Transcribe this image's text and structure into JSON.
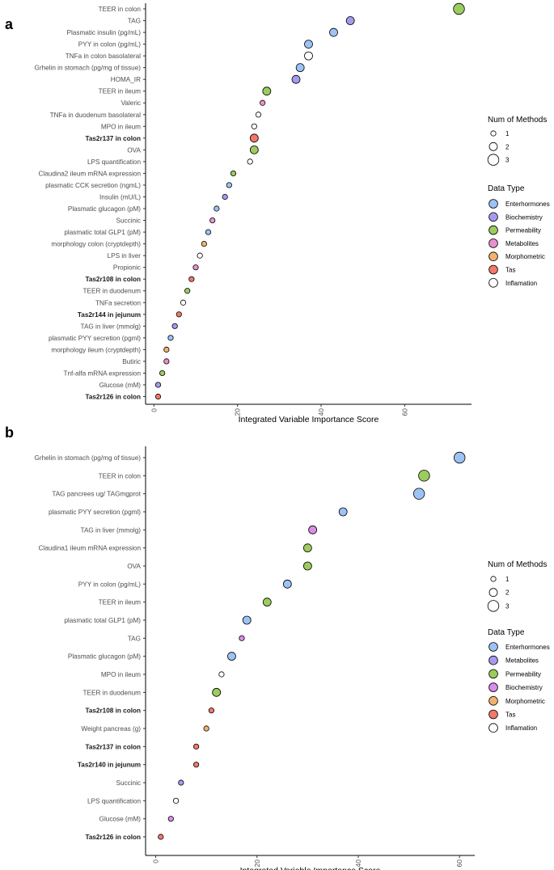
{
  "chart_data": [
    {
      "panel": "a",
      "type": "scatter",
      "xlabel": "Integrated Variable Importance Score",
      "xlim": [
        -2,
        76
      ],
      "xticks": [
        0,
        20,
        40,
        60
      ],
      "colors": {
        "Enterhormones": "#9dc3f5",
        "Biochemistry": "#a49bf0",
        "Permeability": "#9ccc5e",
        "Metabolites": "#e792cf",
        "Morphometric": "#f0b26e",
        "Tas": "#f1786a",
        "Inflamation": "#ffffff"
      },
      "legend_size": {
        "title": "Num of Methods",
        "items": [
          "1",
          "2",
          "3"
        ]
      },
      "legend_type": {
        "title": "Data Type",
        "items": [
          "Enterhormones",
          "Biochemistry",
          "Permeability",
          "Metabolites",
          "Morphometric",
          "Tas",
          "Inflamation"
        ]
      },
      "points": [
        {
          "label": "TEER in colon",
          "x": 73,
          "type": "Permeability",
          "methods": 3,
          "bold": false
        },
        {
          "label": "TAG",
          "x": 47,
          "type": "Biochemistry",
          "methods": 2,
          "bold": false
        },
        {
          "label": "Plasmatic insulin (pg/mL)",
          "x": 43,
          "type": "Enterhormones",
          "methods": 2,
          "bold": false
        },
        {
          "label": "PYY in colon (pg/mL)",
          "x": 37,
          "type": "Enterhormones",
          "methods": 2,
          "bold": false
        },
        {
          "label": "TNFa in colon basolateral",
          "x": 37,
          "type": "Inflamation",
          "methods": 2,
          "bold": false
        },
        {
          "label": "Grhelin in stomach (pg/mg  of tissue)",
          "x": 35,
          "type": "Enterhormones",
          "methods": 2,
          "bold": false
        },
        {
          "label": "HOMA_IR",
          "x": 34,
          "type": "Biochemistry",
          "methods": 2,
          "bold": false
        },
        {
          "label": "TEER in ileum",
          "x": 27,
          "type": "Permeability",
          "methods": 2,
          "bold": false
        },
        {
          "label": "Valeric",
          "x": 26,
          "type": "Metabolites",
          "methods": 1,
          "bold": false
        },
        {
          "label": "TNFa in duodenum basolateral",
          "x": 25,
          "type": "Inflamation",
          "methods": 1,
          "bold": false
        },
        {
          "label": "MPO in ileum",
          "x": 24,
          "type": "Inflamation",
          "methods": 1,
          "bold": false
        },
        {
          "label": "Tas2r137 in colon",
          "x": 24,
          "type": "Tas",
          "methods": 2,
          "bold": true
        },
        {
          "label": "OVA",
          "x": 24,
          "type": "Permeability",
          "methods": 2,
          "bold": false
        },
        {
          "label": "LPS quantification",
          "x": 23,
          "type": "Inflamation",
          "methods": 1,
          "bold": false
        },
        {
          "label": "Claudina2 ileum mRNA expression",
          "x": 19,
          "type": "Permeability",
          "methods": 1,
          "bold": false
        },
        {
          "label": "plasmatic CCK secretion (ngmL)",
          "x": 18,
          "type": "Enterhormones",
          "methods": 1,
          "bold": false
        },
        {
          "label": "Insulin (mU/L)",
          "x": 17,
          "type": "Biochemistry",
          "methods": 1,
          "bold": false
        },
        {
          "label": "Plasmatic glucagon (pM)",
          "x": 15,
          "type": "Enterhormones",
          "methods": 1,
          "bold": false
        },
        {
          "label": "Succinic",
          "x": 14,
          "type": "Metabolites",
          "methods": 1,
          "bold": false
        },
        {
          "label": "plasmatic total GLP1 (pM)",
          "x": 13,
          "type": "Enterhormones",
          "methods": 1,
          "bold": false
        },
        {
          "label": "morphology colon (cryptdepth)",
          "x": 12,
          "type": "Morphometric",
          "methods": 1,
          "bold": false
        },
        {
          "label": "LPS in liver",
          "x": 11,
          "type": "Inflamation",
          "methods": 1,
          "bold": false
        },
        {
          "label": "Propionic",
          "x": 10,
          "type": "Metabolites",
          "methods": 1,
          "bold": false
        },
        {
          "label": "Tas2r108 in colon",
          "x": 9,
          "type": "Tas",
          "methods": 1,
          "bold": true
        },
        {
          "label": "TEER in duodenum",
          "x": 8,
          "type": "Permeability",
          "methods": 1,
          "bold": false
        },
        {
          "label": "TNFa secretion",
          "x": 7,
          "type": "Inflamation",
          "methods": 1,
          "bold": false
        },
        {
          "label": "Tas2r144 in jejunum",
          "x": 6,
          "type": "Tas",
          "methods": 1,
          "bold": true
        },
        {
          "label": "TAG in  liver (mmolg)",
          "x": 5,
          "type": "Biochemistry",
          "methods": 1,
          "bold": false
        },
        {
          "label": "plasmatic PYY secretion (pgml)",
          "x": 4,
          "type": "Enterhormones",
          "methods": 1,
          "bold": false
        },
        {
          "label": "morphology ileum (cryptdepth)",
          "x": 3,
          "type": "Morphometric",
          "methods": 1,
          "bold": false
        },
        {
          "label": "Butiric",
          "x": 3,
          "type": "Metabolites",
          "methods": 1,
          "bold": false
        },
        {
          "label": "Tnf-alfa  mRNA expression",
          "x": 2,
          "type": "Permeability",
          "methods": 1,
          "bold": false
        },
        {
          "label": "Glucose (mM)",
          "x": 1,
          "type": "Biochemistry",
          "methods": 1,
          "bold": false
        },
        {
          "label": "Tas2r126 in colon",
          "x": 1,
          "type": "Tas",
          "methods": 1,
          "bold": true
        }
      ]
    },
    {
      "panel": "b",
      "type": "scatter",
      "xlabel": "Integrated Variable Importance Score",
      "xlim": [
        -2,
        63
      ],
      "xticks": [
        0,
        20,
        40,
        60
      ],
      "colors": {
        "Enterhormones": "#9dc3f5",
        "Metabolites": "#a49bf0",
        "Permeability": "#9ccc5e",
        "Biochemistry": "#db8ce8",
        "Morphometric": "#f0b26e",
        "Tas": "#f1786a",
        "Inflamation": "#ffffff"
      },
      "legend_size": {
        "title": "Num of Methods",
        "items": [
          "1",
          "2",
          "3"
        ]
      },
      "legend_type": {
        "title": "Data Type",
        "items": [
          "Enterhormones",
          "Metabolites",
          "Permeability",
          "Biochemistry",
          "Morphometric",
          "Tas",
          "Inflamation"
        ]
      },
      "points": [
        {
          "label": "Grhelin in stomach (pg/mg  of tissue)",
          "x": 60,
          "type": "Enterhormones",
          "methods": 3,
          "bold": false
        },
        {
          "label": "TEER in colon",
          "x": 53,
          "type": "Permeability",
          "methods": 3,
          "bold": false
        },
        {
          "label": "TAG  pancrees ug/ TAGmgprot",
          "x": 52,
          "type": "Enterhormones",
          "methods": 3,
          "bold": false
        },
        {
          "label": "plasmatic PYY secretion (pgml)",
          "x": 37,
          "type": "Enterhormones",
          "methods": 2,
          "bold": false
        },
        {
          "label": "TAG in  liver (mmolg)",
          "x": 31,
          "type": "Biochemistry",
          "methods": 2,
          "bold": false
        },
        {
          "label": "Claudina1 ileum mRNA expression",
          "x": 30,
          "type": "Permeability",
          "methods": 2,
          "bold": false
        },
        {
          "label": "OVA",
          "x": 30,
          "type": "Permeability",
          "methods": 2,
          "bold": false
        },
        {
          "label": "PYY in colon (pg/mL)",
          "x": 26,
          "type": "Enterhormones",
          "methods": 2,
          "bold": false
        },
        {
          "label": "TEER in ileum",
          "x": 22,
          "type": "Permeability",
          "methods": 2,
          "bold": false
        },
        {
          "label": "plasmatic total GLP1 (pM)",
          "x": 18,
          "type": "Enterhormones",
          "methods": 2,
          "bold": false
        },
        {
          "label": "TAG",
          "x": 17,
          "type": "Biochemistry",
          "methods": 1,
          "bold": false
        },
        {
          "label": "Plasmatic glucagon (pM)",
          "x": 15,
          "type": "Enterhormones",
          "methods": 2,
          "bold": false
        },
        {
          "label": "MPO in ileum",
          "x": 13,
          "type": "Inflamation",
          "methods": 1,
          "bold": false
        },
        {
          "label": "TEER in duodenum",
          "x": 12,
          "type": "Permeability",
          "methods": 2,
          "bold": false
        },
        {
          "label": "Tas2r108 in colon",
          "x": 11,
          "type": "Tas",
          "methods": 1,
          "bold": true
        },
        {
          "label": "Weight pancreas (g)",
          "x": 10,
          "type": "Morphometric",
          "methods": 1,
          "bold": false
        },
        {
          "label": "Tas2r137 in colon",
          "x": 8,
          "type": "Tas",
          "methods": 1,
          "bold": true
        },
        {
          "label": "Tas2r140 in jejunum",
          "x": 8,
          "type": "Tas",
          "methods": 1,
          "bold": true
        },
        {
          "label": "Succinic",
          "x": 5,
          "type": "Metabolites",
          "methods": 1,
          "bold": false
        },
        {
          "label": "LPS quantification",
          "x": 4,
          "type": "Inflamation",
          "methods": 1,
          "bold": false
        },
        {
          "label": "Glucose (mM)",
          "x": 3,
          "type": "Biochemistry",
          "methods": 1,
          "bold": false
        },
        {
          "label": "Tas2r126 in colon",
          "x": 1,
          "type": "Tas",
          "methods": 1,
          "bold": true
        }
      ]
    }
  ]
}
